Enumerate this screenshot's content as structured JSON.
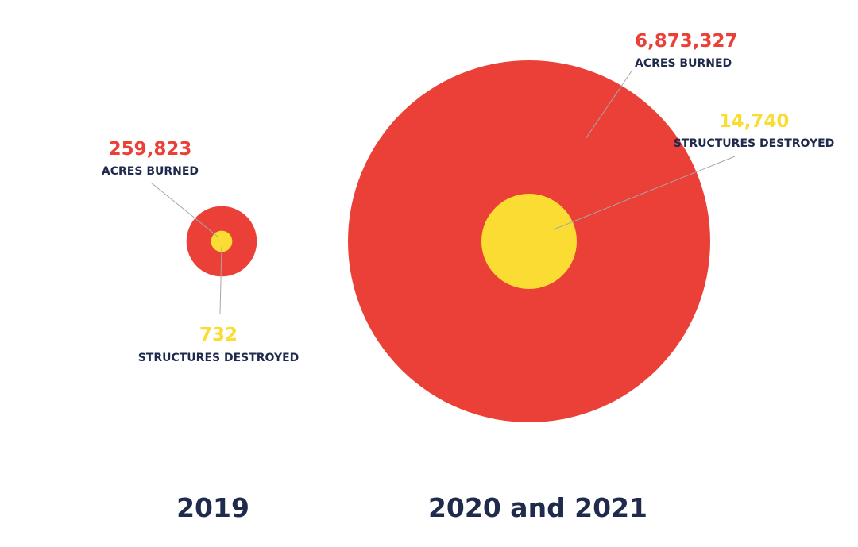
{
  "colors": {
    "acres": "#ea4037",
    "structures": "#fbdc33",
    "text": "#1f2a4d",
    "leader": "#a7a7a7"
  },
  "chart_data": {
    "type": "bubble",
    "groups": [
      {
        "period": "2019",
        "acres_burned": 259823,
        "acres_burned_text": "259,823",
        "acres_label": "ACRES BURNED",
        "structures_destroyed": 732,
        "structures_destroyed_text": "732",
        "structures_label": "STRUCTURES DESTROYED"
      },
      {
        "period": "2020 and 2021",
        "acres_burned": 6873327,
        "acres_burned_text": "6,873,327",
        "acres_label": "ACRES BURNED",
        "structures_destroyed": 14740,
        "structures_destroyed_text": "14,740",
        "structures_label": "STRUCTURES DESTROYED"
      }
    ]
  }
}
